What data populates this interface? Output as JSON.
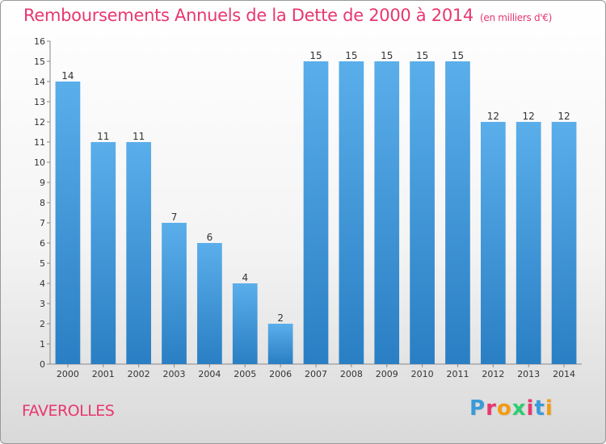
{
  "title": "Remboursements Annuels de la Dette de 2000 à 2014",
  "unit": "(en milliers d'€)",
  "commune": "FAVEROLLES",
  "logo": [
    "P",
    "r",
    "o",
    "x",
    "i",
    "t",
    "i"
  ],
  "logo_colors": [
    "#3a9ad9",
    "#e8376f",
    "#f39c12",
    "#2ecc71",
    "#e8376f",
    "#3a9ad9",
    "#f39c12"
  ],
  "bar_color": "#3a92d6",
  "chart_data": {
    "type": "bar",
    "categories": [
      "2000",
      "2001",
      "2002",
      "2003",
      "2004",
      "2005",
      "2006",
      "2007",
      "2008",
      "2009",
      "2010",
      "2011",
      "2012",
      "2013",
      "2014"
    ],
    "values": [
      14,
      11,
      11,
      7,
      6,
      4,
      2,
      15,
      15,
      15,
      15,
      15,
      12,
      12,
      12
    ],
    "ylim": [
      0,
      16
    ],
    "yticks": [
      0,
      1,
      2,
      3,
      4,
      5,
      6,
      7,
      8,
      9,
      10,
      11,
      12,
      13,
      14,
      15,
      16
    ],
    "grid": false,
    "legend": "none"
  }
}
